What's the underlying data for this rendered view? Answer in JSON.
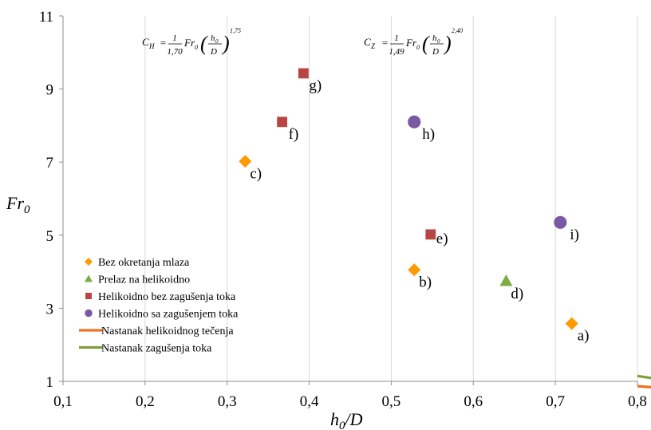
{
  "chart_data": {
    "type": "scatter",
    "title": "",
    "xlabel": "h0/D",
    "ylabel": "Fr0",
    "xlim": [
      0.1,
      0.8
    ],
    "ylim": [
      1,
      11
    ],
    "xticks": [
      0.1,
      0.2,
      0.3,
      0.4,
      0.5,
      0.6,
      0.7,
      0.8
    ],
    "yticks": [
      1,
      3,
      5,
      7,
      9,
      11
    ],
    "xtick_labels": [
      "0,1",
      "0,2",
      "0,3",
      "0,4",
      "0,5",
      "0,6",
      "0,7",
      "0,8"
    ],
    "ytick_labels": [
      "1",
      "3",
      "5",
      "7",
      "9",
      "11"
    ],
    "grid": "vertical",
    "legend_position": "bottom-left",
    "series": [
      {
        "name": "Bez okretanja mlaza",
        "marker": "diamond",
        "color": "#ff9900",
        "points": [
          {
            "x": 0.322,
            "y": 7.02,
            "label": "c)"
          },
          {
            "x": 0.528,
            "y": 4.05,
            "label": "b)"
          },
          {
            "x": 0.72,
            "y": 2.58,
            "label": "a)"
          }
        ]
      },
      {
        "name": "Prelaz na helikoidno",
        "marker": "triangle",
        "color": "#7cac42",
        "points": [
          {
            "x": 0.64,
            "y": 3.75,
            "label": "d)"
          }
        ]
      },
      {
        "name": "Helikoidno bez zagušenja toka",
        "marker": "square",
        "color": "#b84444",
        "points": [
          {
            "x": 0.367,
            "y": 8.1,
            "label": "f)"
          },
          {
            "x": 0.393,
            "y": 9.43,
            "label": "g)"
          },
          {
            "x": 0.548,
            "y": 5.02,
            "label": "e)"
          }
        ]
      },
      {
        "name": "Helikoidno sa zagušenjem toka",
        "marker": "circle",
        "color": "#7759a4",
        "points": [
          {
            "x": 0.528,
            "y": 8.1,
            "label": "h)"
          },
          {
            "x": 0.706,
            "y": 5.35,
            "label": "i)"
          }
        ]
      },
      {
        "name": "Nastanak helikoidnog tečenja",
        "type": "line",
        "color": "#ea7324",
        "coef": 1.7,
        "exp": 1.75
      },
      {
        "name": "Nastanak zagušenja toka",
        "type": "line",
        "color": "#7f9f3c",
        "coef": 1.49,
        "exp": 2.4
      }
    ],
    "annotations": [
      {
        "lhs": "C",
        "sub": "H",
        "num": "1",
        "den": "1,70",
        "exp": "1,75"
      },
      {
        "lhs": "C",
        "sub": "Z",
        "num": "1",
        "den": "1,49",
        "exp": "2,40"
      }
    ],
    "formula_parts": {
      "fr": "Fr",
      "fr_sub": "0",
      "h": "h",
      "h_sub": "0",
      "d": "D"
    }
  }
}
